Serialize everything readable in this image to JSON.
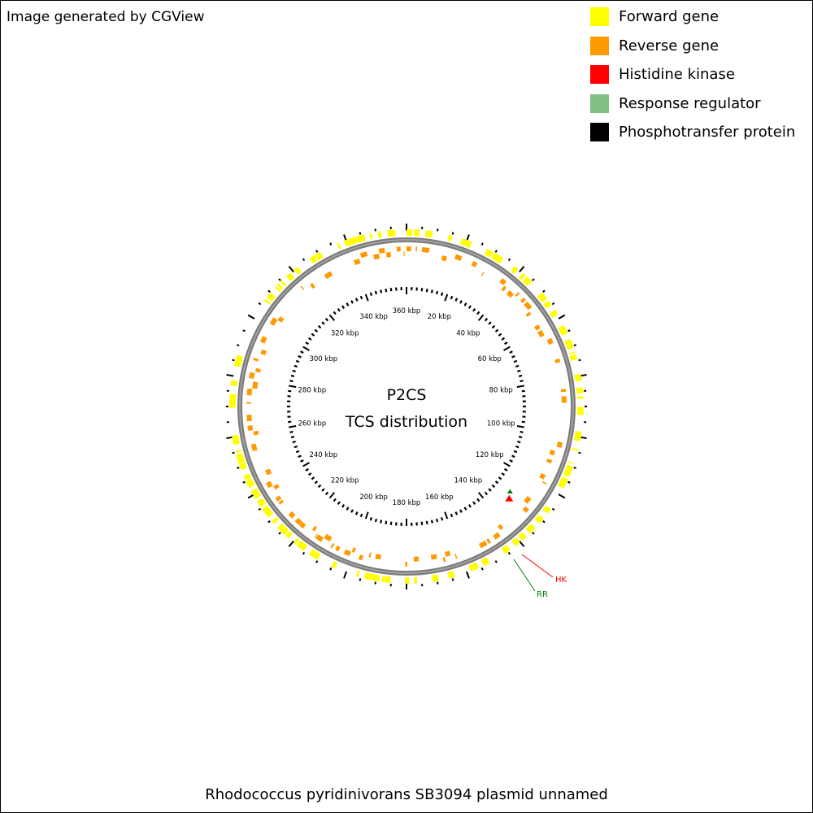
{
  "credit": "Image generated by CGView",
  "legend": [
    {
      "label": "Forward gene",
      "color": "#ffff00"
    },
    {
      "label": "Reverse gene",
      "color": "#ff9900"
    },
    {
      "label": "Histidine kinase",
      "color": "#ff0000"
    },
    {
      "label": "Response regulator",
      "color": "#80c080"
    },
    {
      "label": "Phosphotransfer protein",
      "color": "#000000"
    }
  ],
  "center_title": "P2CS",
  "center_subtitle": "TCS distribution",
  "footer": "Rhodococcus pyridinivorans SB3094 plasmid unnamed",
  "tick_labels": [
    "360 kbp",
    "20 kbp",
    "40 kbp",
    "60 kbp",
    "80 kbp",
    "100 kbp",
    "120 kbp",
    "140 kbp",
    "160 kbp",
    "180 kbp",
    "200 kbp",
    "220 kbp",
    "240 kbp",
    "260 kbp",
    "280 kbp",
    "300 kbp",
    "320 kbp",
    "340 kbp"
  ],
  "features": [
    {
      "label": "HK",
      "color": "#ff0000"
    },
    {
      "label": "RR",
      "color": "#008000"
    }
  ],
  "colors": {
    "forward": "#ffff00",
    "reverse": "#ff9900",
    "backbone": "#808080",
    "hk": "#ff0000",
    "rr": "#008000"
  }
}
